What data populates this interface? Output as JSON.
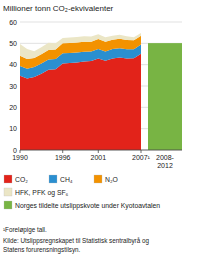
{
  "chart_data": {
    "type": "area",
    "stacked": true,
    "title": "Millioner tonn CO₂-ekvivalenter",
    "x": [
      1990,
      1991,
      1992,
      1993,
      1994,
      1995,
      1996,
      1997,
      1998,
      1999,
      2000,
      2001,
      2002,
      2003,
      2004,
      2005,
      2006,
      2007
    ],
    "xlim": [
      1990,
      2007
    ],
    "xticks": [
      1990,
      1996,
      2001,
      {
        "value": 2007,
        "label": "2007¹"
      }
    ],
    "ylim": [
      0,
      60
    ],
    "yticks": [
      0,
      10,
      20,
      30,
      40,
      50,
      60
    ],
    "grid": true,
    "series": [
      {
        "name": "CO₂",
        "color": "#e2231a",
        "values": [
          34.8,
          33.5,
          34.2,
          35.8,
          37.6,
          37.8,
          40.6,
          40.8,
          41.0,
          41.5,
          41.7,
          42.9,
          41.8,
          42.9,
          43.4,
          42.9,
          43.0,
          45.1
        ]
      },
      {
        "name": "CH₄",
        "color": "#2a8fd0",
        "values": [
          4.6,
          4.6,
          4.7,
          4.7,
          4.8,
          4.8,
          4.8,
          4.7,
          4.7,
          4.6,
          4.5,
          4.5,
          4.4,
          4.4,
          4.3,
          4.3,
          4.2,
          4.3
        ]
      },
      {
        "name": "N₂O",
        "color": "#f39200",
        "values": [
          4.8,
          4.5,
          4.2,
          4.4,
          4.5,
          4.5,
          4.6,
          4.7,
          4.7,
          4.7,
          4.5,
          4.6,
          4.6,
          4.4,
          4.5,
          4.4,
          4.2,
          4.1
        ]
      },
      {
        "name": "HFK, PFK og SF₆",
        "color": "#ebe6c6",
        "values": [
          5.5,
          4.7,
          3.2,
          3.3,
          3.4,
          2.9,
          2.5,
          2.5,
          2.6,
          2.5,
          2.5,
          2.3,
          2.0,
          1.8,
          1.8,
          1.7,
          1.5,
          1.4
        ]
      }
    ],
    "bar": {
      "type": "bar",
      "name": "Norges tildelte utslippskvote under Kyotoavtalen",
      "color": "#78b444",
      "categories": [
        "2008-2012"
      ],
      "values": [
        50.1
      ]
    },
    "footnote": "¹Foreløpige tall.",
    "source": [
      "Kilde: Utslippsregnskapet til Statistisk sentralbyrå og",
      "Statens forurensningstilsyn."
    ]
  }
}
